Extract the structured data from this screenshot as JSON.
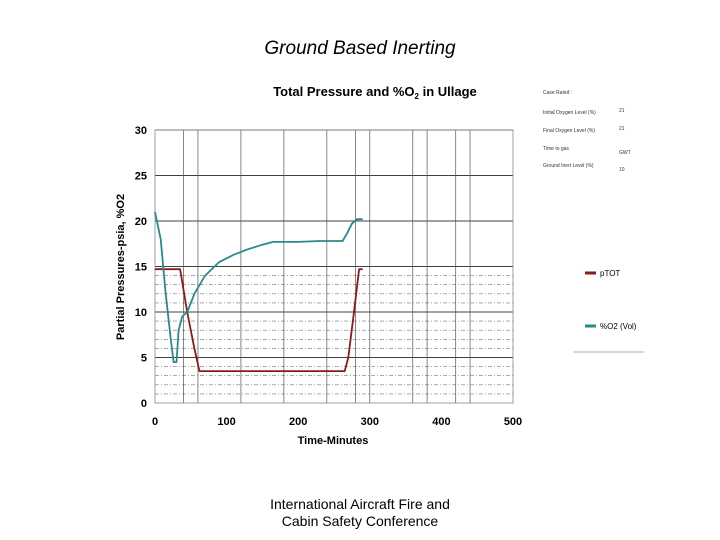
{
  "slide": {
    "title": "Ground Based Inerting",
    "footer_line1": "International Aircraft Fire and",
    "footer_line2": "Cabin Safety Conference"
  },
  "side_panel": {
    "items": [
      {
        "label": "Case Rated :",
        "value": ""
      },
      {
        "label": "Initial Oxygen Level (%)",
        "value": "21"
      },
      {
        "label": "Final Oxygen Level (%)",
        "value": "21"
      },
      {
        "label": "Time to gas",
        "value": "GWT"
      },
      {
        "label": "Ground Inert Level (%)",
        "value": "10"
      }
    ]
  },
  "chart_data": {
    "type": "line",
    "title": "Total Pressure and %O2 in Ullage",
    "xlabel": "Time-Minutes",
    "ylabel": "Partial Pressures-psia, %O2",
    "xlim": [
      0,
      500
    ],
    "ylim": [
      0,
      30
    ],
    "xticks": [
      "0",
      "100",
      "200",
      "300",
      "400",
      "500"
    ],
    "yticks": [
      "0",
      "5",
      "10",
      "15",
      "20",
      "25",
      "30"
    ],
    "legend_position": "right",
    "series": [
      {
        "name": "pTOT",
        "color": "#8b1a1a",
        "points": [
          [
            0,
            14.7
          ],
          [
            35,
            14.7
          ],
          [
            45,
            10
          ],
          [
            55,
            6
          ],
          [
            62,
            3.5
          ],
          [
            265,
            3.5
          ],
          [
            270,
            5
          ],
          [
            278,
            10
          ],
          [
            285,
            14.7
          ],
          [
            290,
            14.7
          ]
        ]
      },
      {
        "name": "%O2 (Vol)",
        "color": "#2a8a8a",
        "points": [
          [
            0,
            21
          ],
          [
            8,
            18
          ],
          [
            15,
            12
          ],
          [
            22,
            7
          ],
          [
            26,
            4.5
          ],
          [
            30,
            4.5
          ],
          [
            33,
            8
          ],
          [
            38,
            9.5
          ],
          [
            45,
            10
          ],
          [
            55,
            12
          ],
          [
            70,
            14
          ],
          [
            90,
            15.5
          ],
          [
            110,
            16.3
          ],
          [
            130,
            16.9
          ],
          [
            150,
            17.4
          ],
          [
            165,
            17.7
          ],
          [
            200,
            17.7
          ],
          [
            230,
            17.8
          ],
          [
            262,
            17.8
          ],
          [
            268,
            18.6
          ],
          [
            275,
            19.7
          ],
          [
            282,
            20.2
          ],
          [
            290,
            20.2
          ]
        ]
      }
    ]
  }
}
